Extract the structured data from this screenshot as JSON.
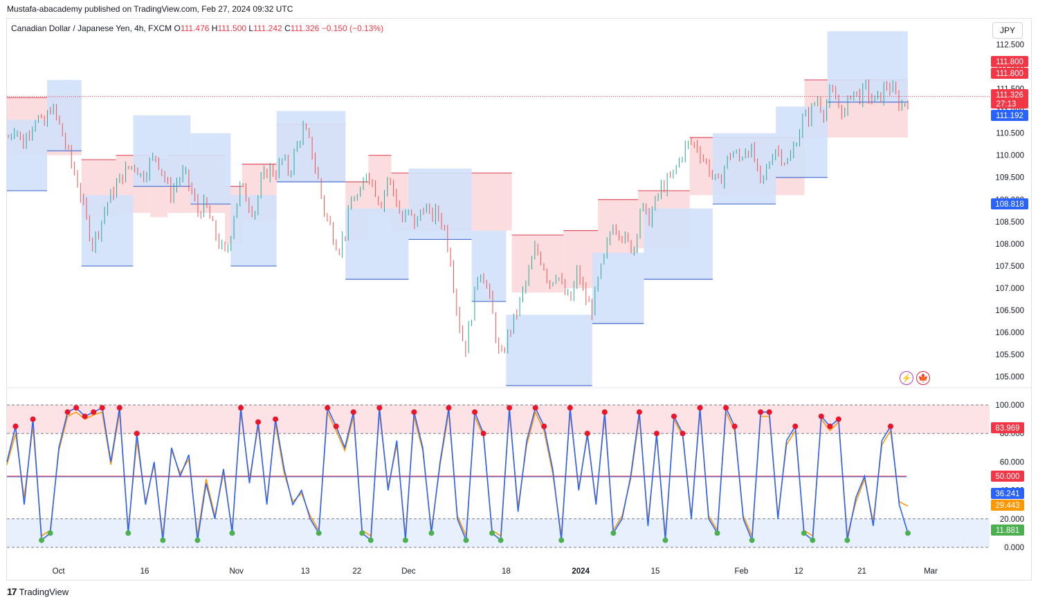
{
  "header": {
    "publisher": "Mustafa-abacademy published on TradingView.com, Feb 27, 2024 09:32 UTC"
  },
  "legend": {
    "symbol": "Canadian Dollar / Japanese Yen, 4h, FXCM",
    "o_label": "O",
    "o_value": "111.476",
    "h_label": "H",
    "h_value": "111.500",
    "l_label": "L",
    "l_value": "111.242",
    "c_label": "C",
    "c_value": "111.326",
    "change": "−0.150 (−0.13%)"
  },
  "currency_button": "JPY",
  "branding": {
    "logo_text": "TradingView"
  },
  "icons": [
    "lightning-icon",
    "canada-flag-icon"
  ],
  "colors": {
    "up": "#26a69a",
    "down": "#ef5350",
    "upper_fill": "#fcd9dc",
    "lower_fill": "#d2e1fb",
    "stoch_k": "#2962ff",
    "stoch_d": "#ff9800",
    "sell_dot": "#e8152b",
    "buy_dot": "#4caf50"
  },
  "chart_data": [
    {
      "type": "candlestick",
      "title": "Canadian Dollar / Japanese Yen, 4h, FXCM",
      "ylim": [
        104.8,
        112.6
      ],
      "y_ticks": [
        "112.500",
        "112.000",
        "111.500",
        "111.000",
        "110.500",
        "110.000",
        "109.500",
        "109.000",
        "108.500",
        "108.000",
        "107.500",
        "107.000",
        "106.500",
        "106.000",
        "105.500",
        "105.000"
      ],
      "x_ticks": [
        "Oct",
        "16",
        "Nov",
        "13",
        "22",
        "Dec",
        "18",
        "2024",
        "15",
        "Feb",
        "12",
        "21",
        "Mar"
      ],
      "price_points": [
        110.4,
        110.7,
        110.2,
        110.6,
        110.9,
        110.6,
        111.1,
        110.8,
        110.3,
        109.8,
        109.3,
        108.6,
        108.0,
        108.4,
        108.9,
        109.2,
        109.5,
        109.7,
        109.8,
        109.5,
        109.8,
        110.0,
        109.6,
        109.1,
        109.4,
        109.6,
        109.2,
        108.7,
        108.9,
        108.4,
        108.0,
        107.7,
        108.6,
        109.3,
        109.0,
        108.7,
        109.4,
        109.7,
        109.6,
        109.9,
        109.6,
        110.2,
        110.6,
        110.2,
        109.5,
        108.7,
        108.3,
        107.9,
        108.3,
        109.1,
        109.0,
        109.7,
        109.3,
        108.9,
        109.5,
        109.1,
        108.5,
        108.7,
        108.4,
        108.9,
        108.6,
        108.7,
        108.4,
        107.6,
        106.3,
        105.6,
        106.5,
        107.5,
        107.1,
        106.3,
        105.3,
        105.9,
        106.3,
        106.8,
        107.3,
        107.9,
        107.6,
        107.1,
        107.4,
        106.9,
        106.7,
        107.4,
        106.8,
        106.5,
        107.2,
        107.8,
        108.5,
        108.3,
        108.0,
        107.9,
        108.9,
        108.5,
        108.9,
        109.3,
        109.4,
        109.7,
        110.1,
        110.3,
        110.2,
        109.9,
        109.6,
        109.3,
        109.8,
        110.1,
        109.9,
        110.2,
        110.0,
        109.3,
        109.7,
        110.2,
        110.0,
        109.8,
        110.3,
        110.8,
        110.9,
        111.3,
        111.0,
        111.4,
        111.2,
        110.9,
        111.5,
        111.3,
        111.5,
        111.2,
        111.3,
        111.6,
        111.4,
        111.1,
        111.3
      ],
      "donchian_upper": [
        {
          "from": "Sep 22",
          "to": "Oct 5",
          "value": 111.3
        },
        {
          "from": "Oct 5",
          "to": "Oct 11",
          "value": 109.9
        },
        {
          "from": "Oct 11",
          "to": "Oct 17",
          "value": 110.0
        },
        {
          "from": "Oct 17",
          "to": "Oct 20",
          "value": 109.9
        },
        {
          "from": "Oct 20",
          "to": "Oct 30",
          "value": 110.0
        },
        {
          "from": "Oct 30",
          "to": "Nov 2",
          "value": 109.3
        },
        {
          "from": "Nov 2",
          "to": "Nov 8",
          "value": 109.8
        },
        {
          "from": "Nov 8",
          "to": "Nov 20",
          "value": 110.7
        },
        {
          "from": "Nov 20",
          "to": "Nov 24",
          "value": 109.4
        },
        {
          "from": "Nov 24",
          "to": "Nov 28",
          "value": 110.0
        },
        {
          "from": "Nov 28",
          "to": "Dec 19",
          "value": 109.6
        },
        {
          "from": "Dec 19",
          "to": "Dec 28",
          "value": 108.2
        },
        {
          "from": "Dec 28",
          "to": "Jan 3",
          "value": 108.3
        },
        {
          "from": "Jan 3",
          "to": "Jan 10",
          "value": 109.0
        },
        {
          "from": "Jan 10",
          "to": "Jan 19",
          "value": 109.2
        },
        {
          "from": "Jan 19",
          "to": "Feb 1",
          "value": 110.4
        },
        {
          "from": "Feb 1",
          "to": "Feb 8",
          "value": 110.4
        },
        {
          "from": "Feb 8",
          "to": "Feb 26",
          "value": 111.7
        }
      ],
      "donchian_lower": [
        {
          "from": "Sep 22",
          "to": "Sep 29",
          "value": 109.2
        },
        {
          "from": "Sep 29",
          "to": "Oct 5",
          "value": 110.1
        },
        {
          "from": "Oct 5",
          "to": "Oct 14",
          "value": 107.5
        },
        {
          "from": "Oct 14",
          "to": "Oct 24",
          "value": 109.3
        },
        {
          "from": "Oct 24",
          "to": "Oct 31",
          "value": 108.9
        },
        {
          "from": "Oct 31",
          "to": "Nov 8",
          "value": 107.5
        },
        {
          "from": "Nov 8",
          "to": "Nov 20",
          "value": 109.4
        },
        {
          "from": "Nov 20",
          "to": "Dec 1",
          "value": 107.2
        },
        {
          "from": "Dec 1",
          "to": "Dec 12",
          "value": 108.1
        },
        {
          "from": "Dec 12",
          "to": "Dec 18",
          "value": 106.7
        },
        {
          "from": "Dec 18",
          "to": "Jan 2",
          "value": 104.8
        },
        {
          "from": "Jan 2",
          "to": "Jan 11",
          "value": 106.2
        },
        {
          "from": "Jan 11",
          "to": "Jan 23",
          "value": 107.2
        },
        {
          "from": "Jan 23",
          "to": "Feb 3",
          "value": 108.9
        },
        {
          "from": "Feb 3",
          "to": "Feb 12",
          "value": 109.5
        },
        {
          "from": "Feb 12",
          "to": "Feb 26",
          "value": 111.2
        }
      ],
      "price_tags": [
        {
          "label": "111.800",
          "value": 111.8,
          "color": "#f23645"
        },
        {
          "label": "111.800",
          "value": 111.8,
          "color": "#f23645"
        },
        {
          "label": "111.326",
          "sub": "27:13",
          "value": 111.326,
          "color": "#f23645"
        },
        {
          "label": "111.192",
          "value": 111.192,
          "color": "#2962ff"
        },
        {
          "label": "108.818",
          "value": 108.818,
          "color": "#2962ff"
        }
      ],
      "current_price": 111.326
    },
    {
      "type": "line",
      "title": "",
      "ylim": [
        0,
        100
      ],
      "y_ticks": [
        "100.000",
        "80.000",
        "60.000",
        "40.000",
        "20.000",
        "0.000"
      ],
      "overbought": 80,
      "middle": 50,
      "oversold": 20,
      "series": [
        {
          "name": "",
          "values": [
            60,
            85,
            30,
            90,
            5,
            10,
            70,
            95,
            98,
            92,
            95,
            98,
            60,
            98,
            10,
            80,
            30,
            60,
            5,
            70,
            50,
            65,
            5,
            45,
            20,
            55,
            10,
            98,
            45,
            88,
            30,
            90,
            55,
            30,
            40,
            20,
            10,
            98,
            85,
            70,
            95,
            10,
            5,
            98,
            40,
            75,
            5,
            95,
            70,
            10,
            60,
            98,
            20,
            5,
            95,
            80,
            10,
            5,
            98,
            25,
            75,
            98,
            85,
            55,
            5,
            98,
            40,
            80,
            30,
            95,
            10,
            20,
            50,
            95,
            15,
            80,
            5,
            92,
            80,
            20,
            98,
            20,
            10,
            98,
            85,
            20,
            5,
            95,
            95,
            20,
            75,
            85,
            10,
            5,
            92,
            85,
            90,
            5,
            35,
            50,
            15,
            75,
            85,
            30,
            10
          ]
        },
        {
          "name": "",
          "values": [
            58,
            80,
            35,
            85,
            8,
            12,
            68,
            92,
            95,
            90,
            93,
            95,
            58,
            95,
            12,
            75,
            32,
            58,
            8,
            68,
            52,
            62,
            8,
            48,
            22,
            52,
            12,
            95,
            48,
            85,
            32,
            87,
            52,
            32,
            38,
            22,
            12,
            95,
            82,
            68,
            92,
            12,
            8,
            95,
            42,
            72,
            8,
            92,
            68,
            12,
            58,
            95,
            22,
            8,
            92,
            78,
            12,
            8,
            95,
            28,
            72,
            95,
            82,
            52,
            8,
            95,
            42,
            78,
            32,
            92,
            12,
            22,
            48,
            92,
            18,
            78,
            8,
            90,
            78,
            22,
            95,
            22,
            12,
            95,
            82,
            22,
            8,
            92,
            92,
            22,
            72,
            82,
            12,
            8,
            90,
            82,
            88,
            8,
            32,
            48,
            18,
            72,
            82,
            32,
            29
          ]
        }
      ],
      "value_tags": [
        {
          "label": "83.969",
          "value": 83.969,
          "color": "#f23645"
        },
        {
          "label": "50.000",
          "value": 50.0,
          "color": "#f23645"
        },
        {
          "label": "36.241",
          "value": 36.241,
          "color": "#2962ff"
        },
        {
          "label": "29.443",
          "value": 29.443,
          "color": "#ff9800"
        },
        {
          "label": "11.881",
          "value": 11.881,
          "color": "#4caf50"
        }
      ]
    }
  ]
}
